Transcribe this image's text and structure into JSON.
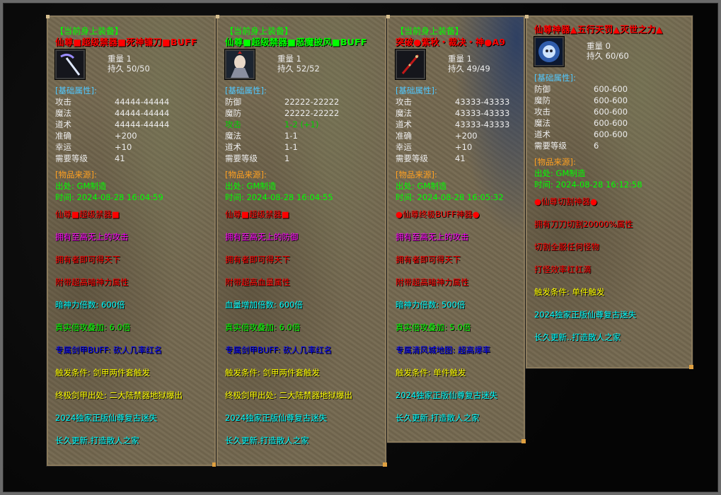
{
  "colors": {
    "header": "#00ff00",
    "attr_section": "#50c8ff",
    "source_section": "#ffa020",
    "source": "#00ff00",
    "stat": "#ececec",
    "stat_highlight": "#00d000"
  },
  "panels": [
    {
      "header": "【当前身上装备】",
      "title": "仙尊■超级禁器■死神镰刀■BUFF",
      "title_color": "#ff0000",
      "icon": "scythe-icon",
      "weight_label": "重量",
      "weight": "1",
      "durability_label": "持久",
      "durability": "50/50",
      "attr_title": "[基础属性]:",
      "stats": [
        {
          "k": "攻击",
          "v": "44444-44444"
        },
        {
          "k": "魔法",
          "v": "44444-44444"
        },
        {
          "k": "道术",
          "v": "44444-44444"
        },
        {
          "k": "准确",
          "v": "+200"
        },
        {
          "k": "幸运",
          "v": "+10"
        },
        {
          "k": "需要等级",
          "v": "41"
        }
      ],
      "source_title": "[物品来源]:",
      "origin": "出处: GM制造",
      "time": "时间: 2024-08-28 16:04:59",
      "lines": [
        {
          "text": "仙尊■超级禁器■",
          "color": "#ff0000"
        },
        {
          "text": "拥有至高无上的攻击",
          "color": "#ff00ff"
        },
        {
          "text": "拥有者即可得天下",
          "color": "#ff0000"
        },
        {
          "text": "附带超高暗神力属性",
          "color": "#ff0000"
        },
        {
          "text": "暗神力倍数: 600倍",
          "color": "#00ffff"
        },
        {
          "text": "真实倍攻叠加: 6.0倍",
          "color": "#00ff00"
        },
        {
          "text": "专属剑甲BUFF: 砍人几率红名",
          "color": "#0000ff"
        },
        {
          "text": "触发条件: 剑甲两件套触发",
          "color": "#ffff00"
        },
        {
          "text": "终极剑甲出处: 二大陆禁器地狱爆出",
          "color": "#ffff00"
        },
        {
          "text": "2024独家正版仙尊复古迷失",
          "color": "#00ffff"
        },
        {
          "text": "长久更新.打造散人之家",
          "color": "#00ffff"
        }
      ]
    },
    {
      "header": "【当前身上装备】",
      "title": "仙尊■超级禁器■恶魔披风■BUFF",
      "title_color": "#00ff00",
      "icon": "demon-cloak-icon",
      "weight_label": "重量",
      "weight": "1",
      "durability_label": "持久",
      "durability": "52/52",
      "attr_title": "[基础属性]:",
      "stats": [
        {
          "k": "防御",
          "v": "22222-22222"
        },
        {
          "k": "魔防",
          "v": "22222-22222"
        },
        {
          "k": "攻击",
          "v": "1-2 (+1)",
          "highlight": true
        },
        {
          "k": "魔法",
          "v": "1-1"
        },
        {
          "k": "道术",
          "v": "1-1"
        },
        {
          "k": "需要等级",
          "v": "1"
        }
      ],
      "source_title": "[物品来源]:",
      "origin": "出处: GM制造",
      "time": "时间: 2024-08-28 16:04:55",
      "lines": [
        {
          "text": "仙尊■超级禁器■",
          "color": "#ff0000"
        },
        {
          "text": "拥有至高无上的防御",
          "color": "#ff00ff"
        },
        {
          "text": "拥有者即可得天下",
          "color": "#ff0000"
        },
        {
          "text": "附带超高血量属性",
          "color": "#ff0000"
        },
        {
          "text": "血量增加倍数: 600倍",
          "color": "#00ffff"
        },
        {
          "text": "真实倍攻叠加: 6.0倍",
          "color": "#00ff00"
        },
        {
          "text": "专属剑甲BUFF: 砍人几率红名",
          "color": "#0000ff"
        },
        {
          "text": "触发条件: 剑甲两件套触发",
          "color": "#ffff00"
        },
        {
          "text": "终极剑甲出处: 二大陆禁器地狱爆出",
          "color": "#ffff00"
        },
        {
          "text": "2024独家正版仙尊复古迷失",
          "color": "#00ffff"
        },
        {
          "text": "长久更新.打造散人之家",
          "color": "#00ffff"
        }
      ]
    },
    {
      "header": "【当前身上装备】",
      "title": "突破●紫秋・裁决・神●A9",
      "title_color": "#ff0000",
      "icon": "red-staff-icon",
      "weight_label": "重量",
      "weight": "1",
      "durability_label": "持久",
      "durability": "49/49",
      "attr_title": "[基础属性]:",
      "stats": [
        {
          "k": "攻击",
          "v": "43333-43333"
        },
        {
          "k": "魔法",
          "v": "43333-43333"
        },
        {
          "k": "道术",
          "v": "43333-43333"
        },
        {
          "k": "准确",
          "v": "+200"
        },
        {
          "k": "幸运",
          "v": "+10"
        },
        {
          "k": "需要等级",
          "v": "41"
        }
      ],
      "source_title": "[物品来源]:",
      "origin": "出处: GM制造",
      "time": "时间: 2024-08-28 16:05:32",
      "lines": [
        {
          "text": "●仙尊终极BUFF神器●",
          "color": "#ff0000"
        },
        {
          "text": "拥有至高无上的攻击",
          "color": "#ff00ff"
        },
        {
          "text": "拥有者即可得天下",
          "color": "#ff0000"
        },
        {
          "text": "附带超高暗神力属性",
          "color": "#ff0000"
        },
        {
          "text": "暗神力倍数: 500倍",
          "color": "#00ffff"
        },
        {
          "text": "真实倍攻叠加: 5.0倍",
          "color": "#00ff00"
        },
        {
          "text": "专属清风城地图: 超高爆率",
          "color": "#0000ff"
        },
        {
          "text": "触发条件: 单件触发",
          "color": "#ffff00"
        },
        {
          "text": "2024独家正版仙尊复古迷失",
          "color": "#00ffff"
        },
        {
          "text": "长久更新.打造散人之家",
          "color": "#00ffff"
        }
      ]
    },
    {
      "header": "",
      "title": "仙尊神器▲五行天罚▲灭世之力▲",
      "title_color": "#ff0000",
      "icon": "ice-skull-icon",
      "weight_label": "重量",
      "weight": "0",
      "durability_label": "持久",
      "durability": "60/60",
      "attr_title": "[基础属性]:",
      "stats": [
        {
          "k": "防御",
          "v": "600-600"
        },
        {
          "k": "魔防",
          "v": "600-600"
        },
        {
          "k": "攻击",
          "v": "600-600"
        },
        {
          "k": "魔法",
          "v": "600-600"
        },
        {
          "k": "道术",
          "v": "600-600"
        },
        {
          "k": "需要等级",
          "v": "6"
        }
      ],
      "source_title": "[物品来源]:",
      "origin": "出处: GM制造",
      "time": "时间: 2024-08-28 16:12:58",
      "lines": [
        {
          "text": "●仙尊切割神器●",
          "color": "#ff0000"
        },
        {
          "text": "拥有刀刀切割20000%属性",
          "color": "#ff0000"
        },
        {
          "text": "切割全服任何怪物",
          "color": "#ff0000"
        },
        {
          "text": "打怪效率杠杠滴",
          "color": "#ff0000"
        },
        {
          "text": "触发条件: 单件触发",
          "color": "#ffff00"
        },
        {
          "text": "2024独家正版仙尊复古迷失",
          "color": "#00ffff"
        },
        {
          "text": "长久更新..打造散人之家",
          "color": "#00ffff"
        }
      ]
    }
  ]
}
